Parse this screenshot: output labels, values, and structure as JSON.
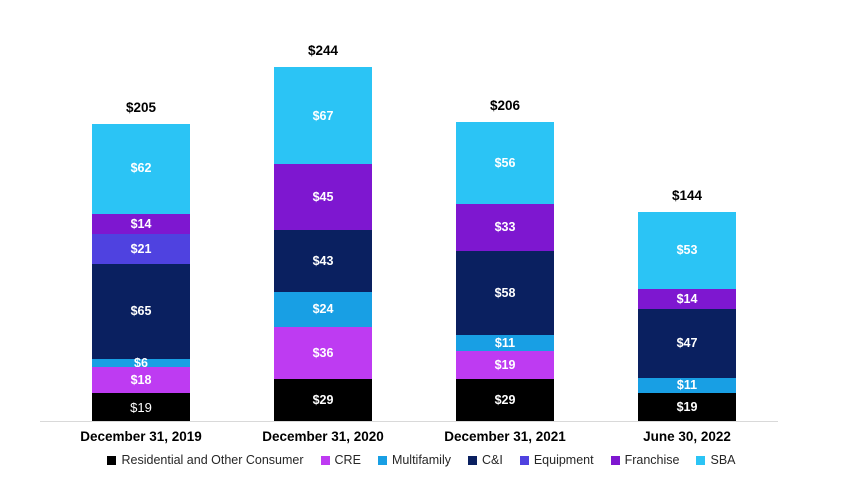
{
  "chart_data": {
    "type": "bar",
    "subtype": "stacked-column",
    "title": "",
    "xlabel": "",
    "ylabel": "",
    "value_prefix": "$",
    "grid": false,
    "legend_position": "bottom",
    "categories": [
      "December 31, 2019",
      "December 31, 2020",
      "December 31, 2021",
      "June 30, 2022"
    ],
    "totals": [
      "$205",
      "$244",
      "$206",
      "$144"
    ],
    "series_order_bottom_to_top": [
      "Residential and Other Consumer",
      "CRE",
      "Multifamily",
      "C&I",
      "Equipment",
      "Franchise",
      "SBA"
    ],
    "colors": {
      "Residential and Other Consumer": "#000000",
      "CRE": "#be3bf2",
      "Multifamily": "#189fe4",
      "C&I": "#0a2060",
      "Equipment": "#4f42e0",
      "Franchise": "#7e17d0",
      "SBA": "#2bc4f5"
    },
    "bars": [
      {
        "category": "December 31, 2019",
        "total": 205,
        "total_label": "$205",
        "segments": [
          {
            "name": "Residential and Other Consumer",
            "value": 19,
            "label": "$19",
            "bold": false
          },
          {
            "name": "CRE",
            "value": 18,
            "label": "$18",
            "bold": true
          },
          {
            "name": "Multifamily",
            "value": 6,
            "label": "$6",
            "bold": true
          },
          {
            "name": "C&I",
            "value": 65,
            "label": "$65",
            "bold": true
          },
          {
            "name": "Equipment",
            "value": 21,
            "label": "$21",
            "bold": true
          },
          {
            "name": "Franchise",
            "value": 14,
            "label": "$14",
            "bold": true
          },
          {
            "name": "SBA",
            "value": 62,
            "label": "$62",
            "bold": true
          }
        ]
      },
      {
        "category": "December 31, 2020",
        "total": 244,
        "total_label": "$244",
        "segments": [
          {
            "name": "Residential and Other Consumer",
            "value": 29,
            "label": "$29",
            "bold": true
          },
          {
            "name": "CRE",
            "value": 36,
            "label": "$36",
            "bold": true
          },
          {
            "name": "Multifamily",
            "value": 24,
            "label": "$24",
            "bold": true
          },
          {
            "name": "C&I",
            "value": 43,
            "label": "$43",
            "bold": true
          },
          {
            "name": "Franchise",
            "value": 45,
            "label": "$45",
            "bold": true
          },
          {
            "name": "SBA",
            "value": 67,
            "label": "$67",
            "bold": true
          }
        ]
      },
      {
        "category": "December 31, 2021",
        "total": 206,
        "total_label": "$206",
        "segments": [
          {
            "name": "Residential and Other Consumer",
            "value": 29,
            "label": "$29",
            "bold": true
          },
          {
            "name": "CRE",
            "value": 19,
            "label": "$19",
            "bold": true
          },
          {
            "name": "Multifamily",
            "value": 11,
            "label": "$11",
            "bold": true
          },
          {
            "name": "C&I",
            "value": 58,
            "label": "$58",
            "bold": true
          },
          {
            "name": "Franchise",
            "value": 33,
            "label": "$33",
            "bold": true
          },
          {
            "name": "SBA",
            "value": 56,
            "label": "$56",
            "bold": true
          }
        ]
      },
      {
        "category": "June 30, 2022",
        "total": 144,
        "total_label": "$144",
        "segments": [
          {
            "name": "Residential and Other Consumer",
            "value": 19,
            "label": "$19",
            "bold": true
          },
          {
            "name": "Multifamily",
            "value": 11,
            "label": "$11",
            "bold": true
          },
          {
            "name": "C&I",
            "value": 47,
            "label": "$47",
            "bold": true
          },
          {
            "name": "Franchise",
            "value": 14,
            "label": "$14",
            "bold": true
          },
          {
            "name": "SBA",
            "value": 53,
            "label": "$53",
            "bold": true
          }
        ]
      }
    ],
    "legend": [
      {
        "label": "Residential and Other Consumer",
        "color": "#000000"
      },
      {
        "label": "CRE",
        "color": "#be3bf2"
      },
      {
        "label": "Multifamily",
        "color": "#189fe4"
      },
      {
        "label": "C&I",
        "color": "#0a2060"
      },
      {
        "label": "Equipment",
        "color": "#4f42e0"
      },
      {
        "label": "Franchise",
        "color": "#7e17d0"
      },
      {
        "label": "SBA",
        "color": "#2bc4f5"
      }
    ]
  }
}
